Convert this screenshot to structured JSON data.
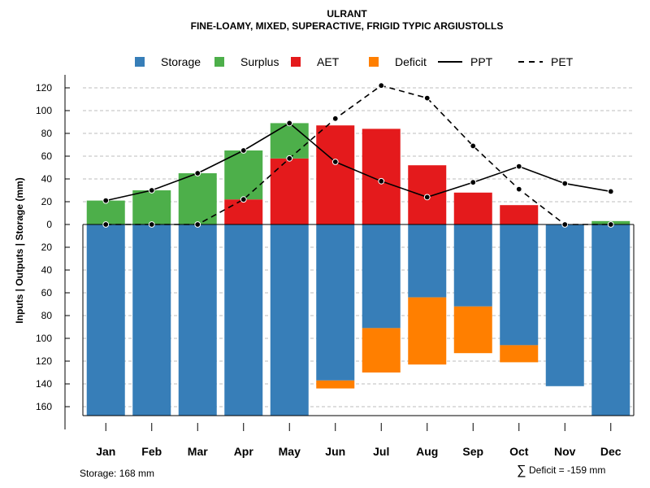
{
  "chart_data": {
    "type": "bar",
    "title": "ULRANT",
    "subtitle": "FINE-LOAMY, MIXED, SUPERACTIVE, FRIGID TYPIC ARGIUSTOLLS",
    "ylabel": "Inputs | Outputs | Storage    (mm)",
    "xlabel": "",
    "categories": [
      "Jan",
      "Feb",
      "Mar",
      "Apr",
      "May",
      "Jun",
      "Jul",
      "Aug",
      "Sep",
      "Oct",
      "Nov",
      "Dec"
    ],
    "ylim": [
      -168,
      120
    ],
    "ytick_values": [
      120,
      100,
      80,
      60,
      40,
      20,
      0,
      -20,
      -40,
      -60,
      -80,
      -100,
      -120,
      -140,
      -160
    ],
    "ytick_labels": [
      "120",
      "100",
      "80",
      "60",
      "40",
      "20",
      "0",
      "20",
      "40",
      "60",
      "80",
      "100",
      "120",
      "140",
      "160"
    ],
    "grid": true,
    "legend_position": "top",
    "legend": [
      {
        "label": "Storage",
        "kind": "box",
        "color": "#377EB8"
      },
      {
        "label": "Surplus",
        "kind": "box",
        "color": "#4DAF4A"
      },
      {
        "label": "AET",
        "kind": "box",
        "color": "#E41A1C"
      },
      {
        "label": "Deficit",
        "kind": "box",
        "color": "#FF7F00"
      },
      {
        "label": "PPT",
        "kind": "solid-line",
        "color": "#000000"
      },
      {
        "label": "PET",
        "kind": "dashed-line",
        "color": "#000000"
      }
    ],
    "series": [
      {
        "name": "Storage",
        "color": "#377EB8",
        "values": [
          -168,
          -168,
          -168,
          -168,
          -168,
          -137,
          -91,
          -64,
          -72,
          -106,
          -142,
          -168
        ]
      },
      {
        "name": "Surplus",
        "color": "#4DAF4A",
        "values": [
          21,
          30,
          45,
          43,
          31,
          0,
          0,
          0,
          0,
          0,
          0,
          3
        ]
      },
      {
        "name": "AET",
        "color": "#E41A1C",
        "values": [
          0,
          0,
          0,
          22,
          58,
          87,
          84,
          52,
          28,
          17,
          0,
          0
        ]
      },
      {
        "name": "Deficit",
        "color": "#FF7F00",
        "values": [
          0,
          0,
          0,
          0,
          0,
          -7,
          -39,
          -59,
          -41,
          -15,
          0,
          0
        ]
      },
      {
        "name": "PPT",
        "color": "#000000",
        "style": "solid",
        "values": [
          21,
          30,
          45,
          65,
          89,
          55,
          38,
          24,
          37,
          51,
          36,
          29
        ]
      },
      {
        "name": "PET",
        "color": "#000000",
        "style": "dashed",
        "values": [
          0,
          0,
          0,
          22,
          58,
          93,
          122,
          111,
          69,
          31,
          0,
          0
        ]
      }
    ]
  },
  "footer": {
    "storage_note": "Storage: 168 mm",
    "deficit_symbol": "∑",
    "deficit_note": "Deficit = -159 mm"
  }
}
